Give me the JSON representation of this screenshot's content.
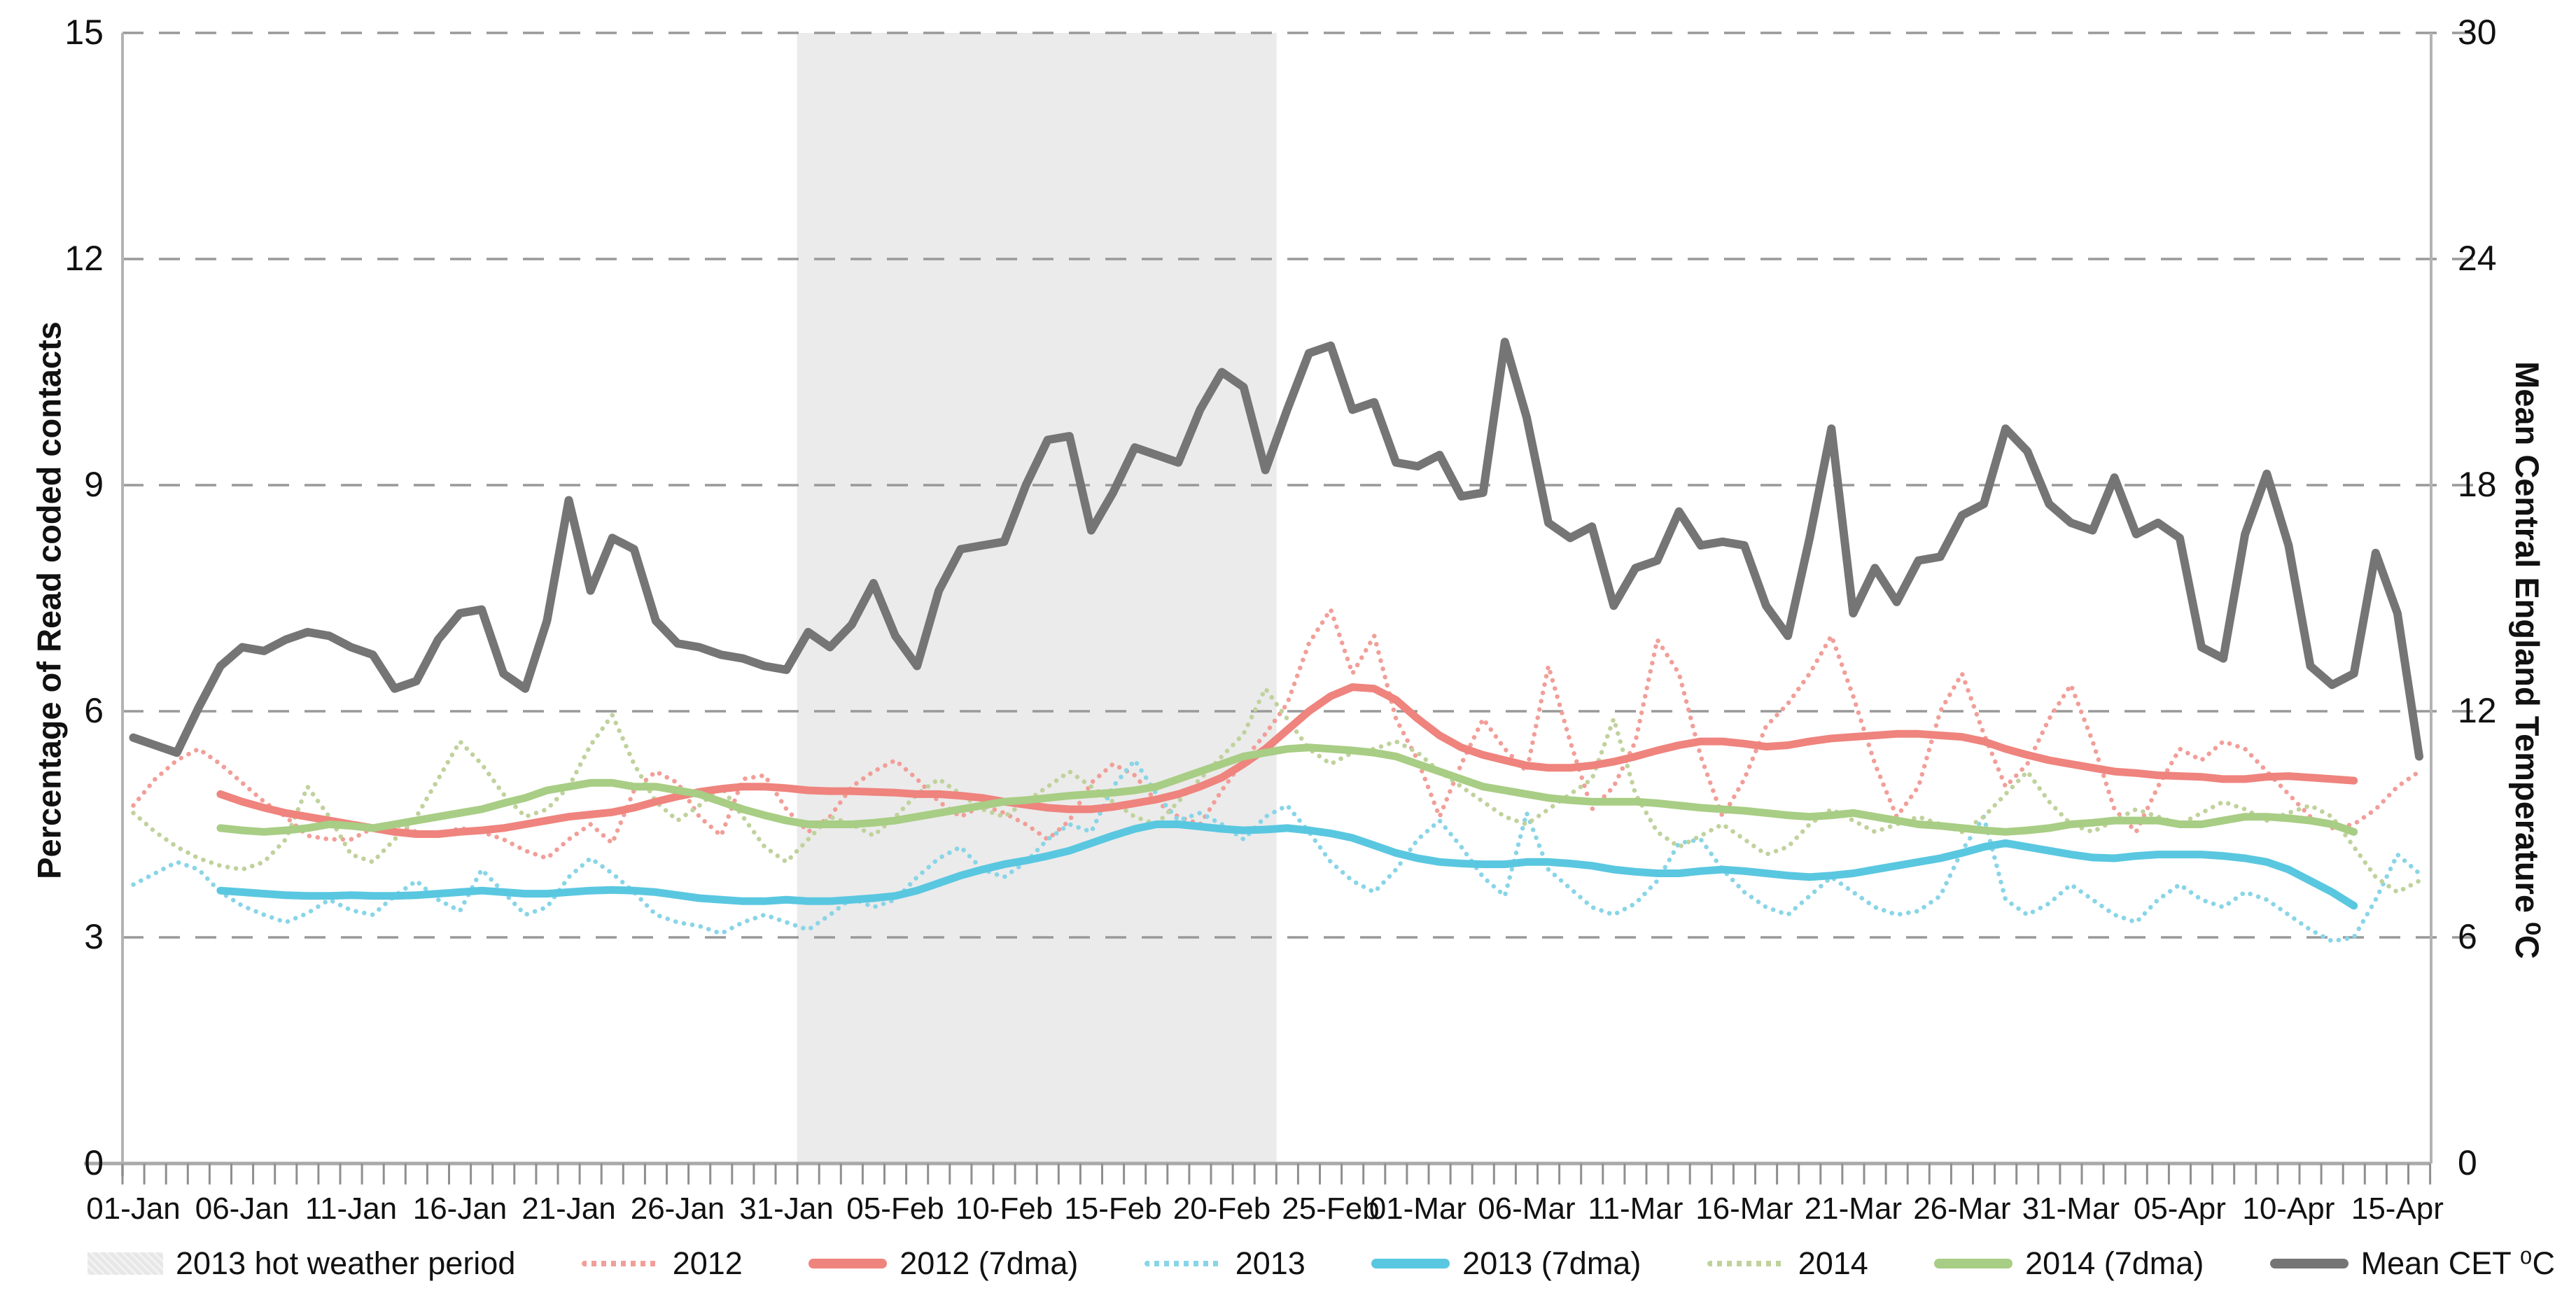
{
  "figure": {
    "y_left_axis_title": "Percentage of Read coded contacts",
    "y_right_axis_title": "Mean Central England Temperature ⁰C",
    "y_left_ticks": [
      "15",
      "12",
      "9",
      "6",
      "3",
      "0"
    ],
    "y_right_ticks": [
      "30",
      "24",
      "18",
      "12",
      "6",
      "0"
    ]
  },
  "legend": {
    "items": [
      {
        "label": "2013 hot weather period",
        "type": "band",
        "color": "#e7e7e7"
      },
      {
        "label": "2012",
        "type": "dotted",
        "color": "#f29e98"
      },
      {
        "label": "2012 (7dma)",
        "type": "solid",
        "color": "#ef837d"
      },
      {
        "label": "2013",
        "type": "dotted",
        "color": "#88d5e7"
      },
      {
        "label": "2013 (7dma)",
        "type": "solid",
        "color": "#5ac7e0"
      },
      {
        "label": "2014",
        "type": "dotted",
        "color": "#c0d29c"
      },
      {
        "label": "2014 (7dma)",
        "type": "solid",
        "color": "#a8cd84"
      },
      {
        "label": "Mean CET ⁰C",
        "type": "solid",
        "color": "#757575"
      }
    ]
  },
  "chart_data": {
    "type": "line",
    "title": "",
    "x_unit": "days from 01-Jan (daily points, 01-Jan to 16-Apr)",
    "x_tick_labels": [
      "01-Jan",
      "06-Jan",
      "11-Jan",
      "16-Jan",
      "21-Jan",
      "26-Jan",
      "31-Jan",
      "05-Feb",
      "10-Feb",
      "15-Feb",
      "20-Feb",
      "25-Feb",
      "01-Mar",
      "06-Mar",
      "11-Mar",
      "16-Mar",
      "21-Mar",
      "26-Mar",
      "31-Mar",
      "05-Apr",
      "10-Apr",
      "15-Apr"
    ],
    "x_tick_day_index": [
      0,
      5,
      10,
      15,
      20,
      25,
      30,
      35,
      40,
      45,
      50,
      55,
      59,
      64,
      69,
      74,
      79,
      84,
      89,
      94,
      99,
      104
    ],
    "y_left": {
      "label": "Percentage of Read coded contacts",
      "range": [
        0,
        15
      ],
      "ticks": [
        0,
        3,
        6,
        9,
        12,
        15
      ],
      "gridlines": "dashed"
    },
    "y_right": {
      "label": "Mean Central England Temperature ⁰C",
      "range": [
        0,
        30
      ],
      "ticks": [
        0,
        6,
        12,
        18,
        24,
        30
      ]
    },
    "shaded_region": {
      "label": "2013 hot weather period",
      "start_day_index": 31,
      "end_day_index": 52,
      "approx_dates": "02-Feb to 22-Feb",
      "color": "#ebebeb"
    },
    "series": [
      {
        "name": "2012",
        "slug": "2012-daily",
        "axis": "left",
        "style": "dotted",
        "color": "#f29e98",
        "values": [
          4.75,
          5.1,
          5.35,
          5.5,
          5.3,
          5.05,
          4.8,
          4.6,
          4.35,
          4.3,
          4.3,
          4.45,
          4.5,
          4.4,
          4.35,
          4.45,
          4.4,
          4.3,
          4.15,
          4.05,
          4.3,
          4.5,
          4.25,
          4.95,
          5.2,
          5.05,
          4.6,
          4.35,
          5.1,
          5.15,
          4.7,
          4.4,
          4.6,
          5.0,
          5.2,
          5.35,
          5.1,
          4.8,
          4.6,
          4.75,
          4.65,
          4.5,
          4.3,
          4.55,
          5.05,
          5.3,
          5.15,
          4.8,
          4.6,
          4.5,
          4.95,
          5.35,
          5.7,
          6.1,
          6.9,
          7.35,
          6.5,
          7.0,
          5.9,
          5.35,
          4.6,
          5.3,
          5.9,
          5.5,
          5.2,
          6.6,
          5.6,
          4.7,
          5.0,
          5.6,
          6.95,
          6.5,
          5.4,
          4.6,
          5.1,
          5.8,
          6.1,
          6.5,
          7.0,
          6.2,
          5.3,
          4.6,
          5.0,
          6.0,
          6.5,
          5.7,
          5.0,
          5.3,
          5.9,
          6.35,
          5.6,
          4.7,
          4.4,
          5.0,
          5.5,
          5.35,
          5.6,
          5.5,
          5.2,
          4.9,
          4.6,
          4.45,
          4.5,
          4.7,
          5.0,
          5.2
        ]
      },
      {
        "name": "2012 (7dma)",
        "slug": "2012-7dma",
        "axis": "left",
        "style": "solid",
        "color": "#ef837d",
        "values": [
          null,
          null,
          null,
          null,
          4.9,
          4.8,
          4.72,
          4.65,
          4.6,
          4.55,
          4.5,
          4.45,
          4.4,
          4.37,
          4.37,
          4.4,
          4.42,
          4.45,
          4.5,
          4.55,
          4.6,
          4.63,
          4.66,
          4.72,
          4.8,
          4.87,
          4.93,
          4.97,
          5.0,
          5.0,
          4.98,
          4.95,
          4.94,
          4.94,
          4.93,
          4.92,
          4.9,
          4.9,
          4.88,
          4.85,
          4.8,
          4.76,
          4.72,
          4.7,
          4.7,
          4.73,
          4.78,
          4.83,
          4.9,
          5.0,
          5.12,
          5.3,
          5.5,
          5.75,
          6.0,
          6.2,
          6.32,
          6.3,
          6.15,
          5.9,
          5.68,
          5.52,
          5.42,
          5.35,
          5.28,
          5.25,
          5.25,
          5.28,
          5.33,
          5.4,
          5.48,
          5.55,
          5.6,
          5.6,
          5.57,
          5.53,
          5.55,
          5.6,
          5.64,
          5.66,
          5.68,
          5.7,
          5.7,
          5.68,
          5.66,
          5.6,
          5.5,
          5.42,
          5.35,
          5.3,
          5.25,
          5.2,
          5.18,
          5.15,
          5.14,
          5.13,
          5.1,
          5.1,
          5.13,
          5.14,
          5.12,
          5.1,
          5.08,
          null,
          null,
          null
        ]
      },
      {
        "name": "2013",
        "slug": "2013-daily",
        "axis": "left",
        "style": "dotted",
        "color": "#88d5e7",
        "values": [
          3.7,
          3.85,
          4.0,
          3.9,
          3.6,
          3.42,
          3.3,
          3.2,
          3.32,
          3.5,
          3.36,
          3.3,
          3.55,
          3.75,
          3.5,
          3.35,
          3.9,
          3.6,
          3.3,
          3.4,
          3.8,
          4.05,
          3.85,
          3.6,
          3.3,
          3.2,
          3.15,
          3.05,
          3.2,
          3.3,
          3.2,
          3.1,
          3.3,
          3.52,
          3.4,
          3.5,
          3.8,
          4.05,
          4.2,
          3.9,
          3.8,
          4.0,
          4.3,
          4.5,
          4.4,
          5.0,
          5.35,
          4.9,
          4.55,
          4.65,
          4.5,
          4.3,
          4.6,
          4.75,
          4.4,
          4.0,
          3.75,
          3.6,
          3.9,
          4.3,
          4.55,
          4.2,
          3.8,
          3.55,
          4.65,
          3.9,
          3.65,
          3.4,
          3.3,
          3.45,
          3.75,
          4.25,
          4.3,
          3.9,
          3.6,
          3.4,
          3.3,
          3.55,
          3.8,
          3.6,
          3.4,
          3.3,
          3.35,
          3.55,
          4.15,
          4.6,
          3.5,
          3.3,
          3.45,
          3.7,
          3.5,
          3.3,
          3.2,
          3.5,
          3.7,
          3.5,
          3.4,
          3.6,
          3.5,
          3.3,
          3.1,
          2.95,
          3.0,
          3.5,
          4.1,
          3.85
        ]
      },
      {
        "name": "2013 (7dma)",
        "slug": "2013-7dma",
        "axis": "left",
        "style": "solid",
        "color": "#5ac7e0",
        "values": [
          null,
          null,
          null,
          null,
          3.62,
          3.6,
          3.58,
          3.56,
          3.55,
          3.55,
          3.56,
          3.55,
          3.55,
          3.56,
          3.58,
          3.6,
          3.62,
          3.6,
          3.58,
          3.58,
          3.6,
          3.62,
          3.63,
          3.62,
          3.6,
          3.56,
          3.52,
          3.5,
          3.48,
          3.48,
          3.5,
          3.48,
          3.48,
          3.5,
          3.52,
          3.55,
          3.62,
          3.72,
          3.82,
          3.9,
          3.97,
          4.02,
          4.08,
          4.15,
          4.25,
          4.35,
          4.44,
          4.5,
          4.5,
          4.47,
          4.44,
          4.42,
          4.43,
          4.45,
          4.42,
          4.38,
          4.32,
          4.22,
          4.12,
          4.05,
          4.0,
          3.98,
          3.97,
          3.97,
          4.0,
          4.0,
          3.98,
          3.95,
          3.9,
          3.87,
          3.85,
          3.85,
          3.88,
          3.9,
          3.88,
          3.85,
          3.82,
          3.8,
          3.82,
          3.85,
          3.9,
          3.95,
          4.0,
          4.05,
          4.12,
          4.2,
          4.25,
          4.2,
          4.15,
          4.1,
          4.06,
          4.05,
          4.08,
          4.1,
          4.1,
          4.1,
          4.08,
          4.05,
          4.0,
          3.9,
          3.75,
          3.6,
          3.42,
          null,
          null,
          null
        ]
      },
      {
        "name": "2014",
        "slug": "2014-daily",
        "axis": "left",
        "style": "dotted",
        "color": "#c0d29c",
        "values": [
          4.65,
          4.4,
          4.2,
          4.05,
          3.95,
          3.9,
          4.0,
          4.3,
          5.0,
          4.6,
          4.1,
          4.0,
          4.3,
          4.6,
          5.1,
          5.6,
          5.3,
          4.9,
          4.6,
          4.7,
          5.0,
          5.55,
          5.95,
          5.3,
          4.8,
          4.55,
          4.75,
          5.0,
          4.6,
          4.2,
          4.0,
          4.3,
          4.6,
          4.5,
          4.35,
          4.6,
          4.9,
          5.1,
          4.9,
          4.7,
          4.6,
          4.8,
          5.0,
          5.2,
          5.0,
          4.8,
          4.6,
          4.5,
          4.8,
          5.1,
          5.4,
          5.7,
          6.3,
          5.9,
          5.5,
          5.3,
          5.45,
          5.5,
          5.6,
          5.45,
          5.2,
          5.0,
          4.8,
          4.6,
          4.5,
          4.7,
          4.9,
          5.1,
          5.9,
          4.9,
          4.4,
          4.2,
          4.35,
          4.5,
          4.3,
          4.1,
          4.2,
          4.5,
          4.7,
          4.55,
          4.4,
          4.5,
          4.6,
          4.5,
          4.4,
          4.6,
          4.9,
          5.2,
          4.8,
          4.5,
          4.4,
          4.55,
          4.7,
          4.6,
          4.5,
          4.65,
          4.8,
          4.7,
          4.55,
          4.65,
          4.75,
          4.6,
          4.2,
          3.8,
          3.6,
          3.75
        ]
      },
      {
        "name": "2014 (7dma)",
        "slug": "2014-7dma",
        "axis": "left",
        "style": "solid",
        "color": "#a8cd84",
        "values": [
          null,
          null,
          null,
          null,
          4.45,
          4.42,
          4.4,
          4.42,
          4.45,
          4.5,
          4.48,
          4.45,
          4.5,
          4.55,
          4.6,
          4.65,
          4.7,
          4.78,
          4.85,
          4.95,
          5.0,
          5.05,
          5.05,
          5.0,
          5.0,
          4.95,
          4.9,
          4.8,
          4.7,
          4.62,
          4.55,
          4.5,
          4.5,
          4.5,
          4.52,
          4.55,
          4.6,
          4.65,
          4.7,
          4.75,
          4.8,
          4.82,
          4.85,
          4.88,
          4.9,
          4.92,
          4.95,
          5.0,
          5.1,
          5.2,
          5.3,
          5.4,
          5.45,
          5.5,
          5.52,
          5.5,
          5.48,
          5.45,
          5.4,
          5.3,
          5.2,
          5.1,
          5.0,
          4.95,
          4.9,
          4.85,
          4.82,
          4.8,
          4.8,
          4.8,
          4.78,
          4.75,
          4.72,
          4.7,
          4.68,
          4.65,
          4.62,
          4.6,
          4.62,
          4.65,
          4.6,
          4.55,
          4.5,
          4.48,
          4.45,
          4.42,
          4.4,
          4.42,
          4.45,
          4.5,
          4.52,
          4.55,
          4.55,
          4.55,
          4.5,
          4.5,
          4.55,
          4.6,
          4.6,
          4.58,
          4.55,
          4.5,
          4.4,
          null,
          null,
          null
        ]
      },
      {
        "name": "Mean CET ⁰C",
        "slug": "mean-cet",
        "axis": "right",
        "style": "solid",
        "color": "#757575",
        "values": [
          11.3,
          11.1,
          10.9,
          12.1,
          13.2,
          13.7,
          13.6,
          13.9,
          14.1,
          14.0,
          13.7,
          13.5,
          12.6,
          12.8,
          13.9,
          14.6,
          14.7,
          13.0,
          12.6,
          14.4,
          17.6,
          15.2,
          16.6,
          16.3,
          14.4,
          13.8,
          13.7,
          13.5,
          13.4,
          13.2,
          13.1,
          14.1,
          13.7,
          14.3,
          15.4,
          14.0,
          13.2,
          15.2,
          16.3,
          16.4,
          16.5,
          18.0,
          19.2,
          19.3,
          16.8,
          17.8,
          19.0,
          18.8,
          18.6,
          20.0,
          21.0,
          20.6,
          18.4,
          20.0,
          21.5,
          21.7,
          20.0,
          20.2,
          18.6,
          18.5,
          18.8,
          17.7,
          17.8,
          21.8,
          19.8,
          17.0,
          16.6,
          16.9,
          14.8,
          15.8,
          16.0,
          17.3,
          16.4,
          16.5,
          16.4,
          14.8,
          14.0,
          16.6,
          19.5,
          14.6,
          15.8,
          14.9,
          16.0,
          16.1,
          17.2,
          17.5,
          19.5,
          18.9,
          17.5,
          17.0,
          16.8,
          18.2,
          16.7,
          17.0,
          16.6,
          13.7,
          13.4,
          16.7,
          18.3,
          16.4,
          13.2,
          12.7,
          13.0,
          16.2,
          14.6,
          10.8
        ]
      }
    ]
  }
}
